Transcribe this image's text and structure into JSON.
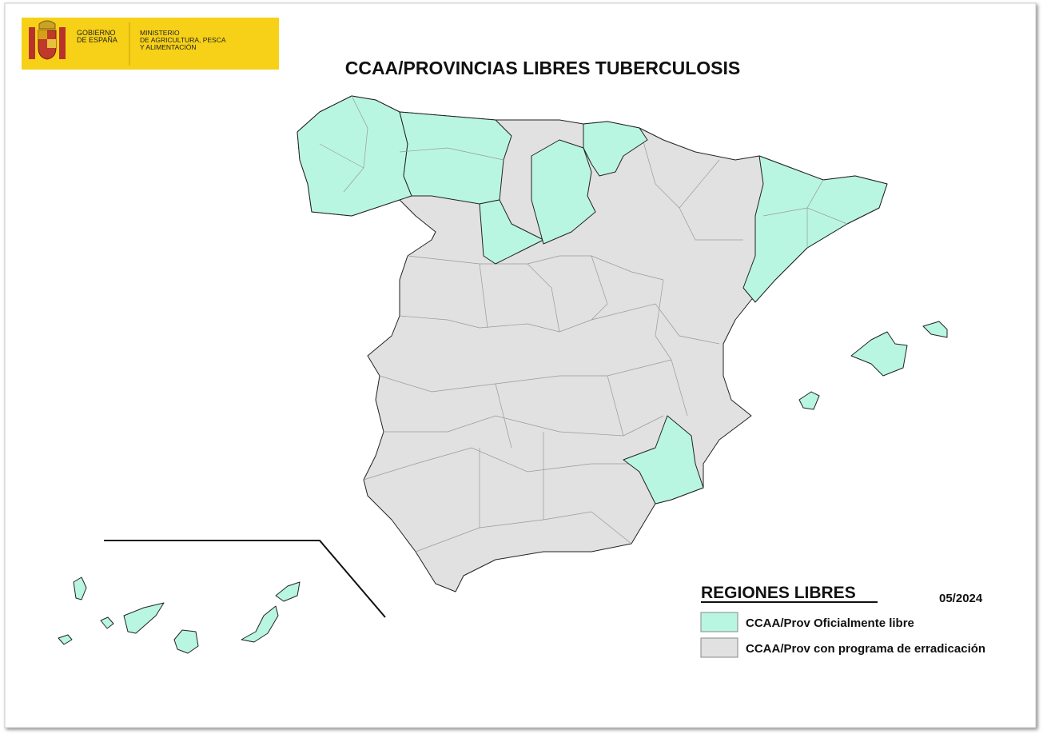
{
  "header": {
    "government": [
      "GOBIERNO",
      "DE ESPAÑA"
    ],
    "ministry": [
      "MINISTERIO",
      "DE AGRICULTURA, PESCA",
      "Y ALIMENTACIÓN"
    ]
  },
  "title": "CCAA/PROVINCIAS LIBRES TUBERCULOSIS",
  "legend": {
    "title": "REGIONES LIBRES",
    "date": "05/2024",
    "items": [
      {
        "label": "CCAA/Prov Oficialmente libre",
        "color": "#b9f6e1"
      },
      {
        "label": "CCAA/Prov con programa de erradicación",
        "color": "#e1e1e1"
      }
    ]
  }
}
